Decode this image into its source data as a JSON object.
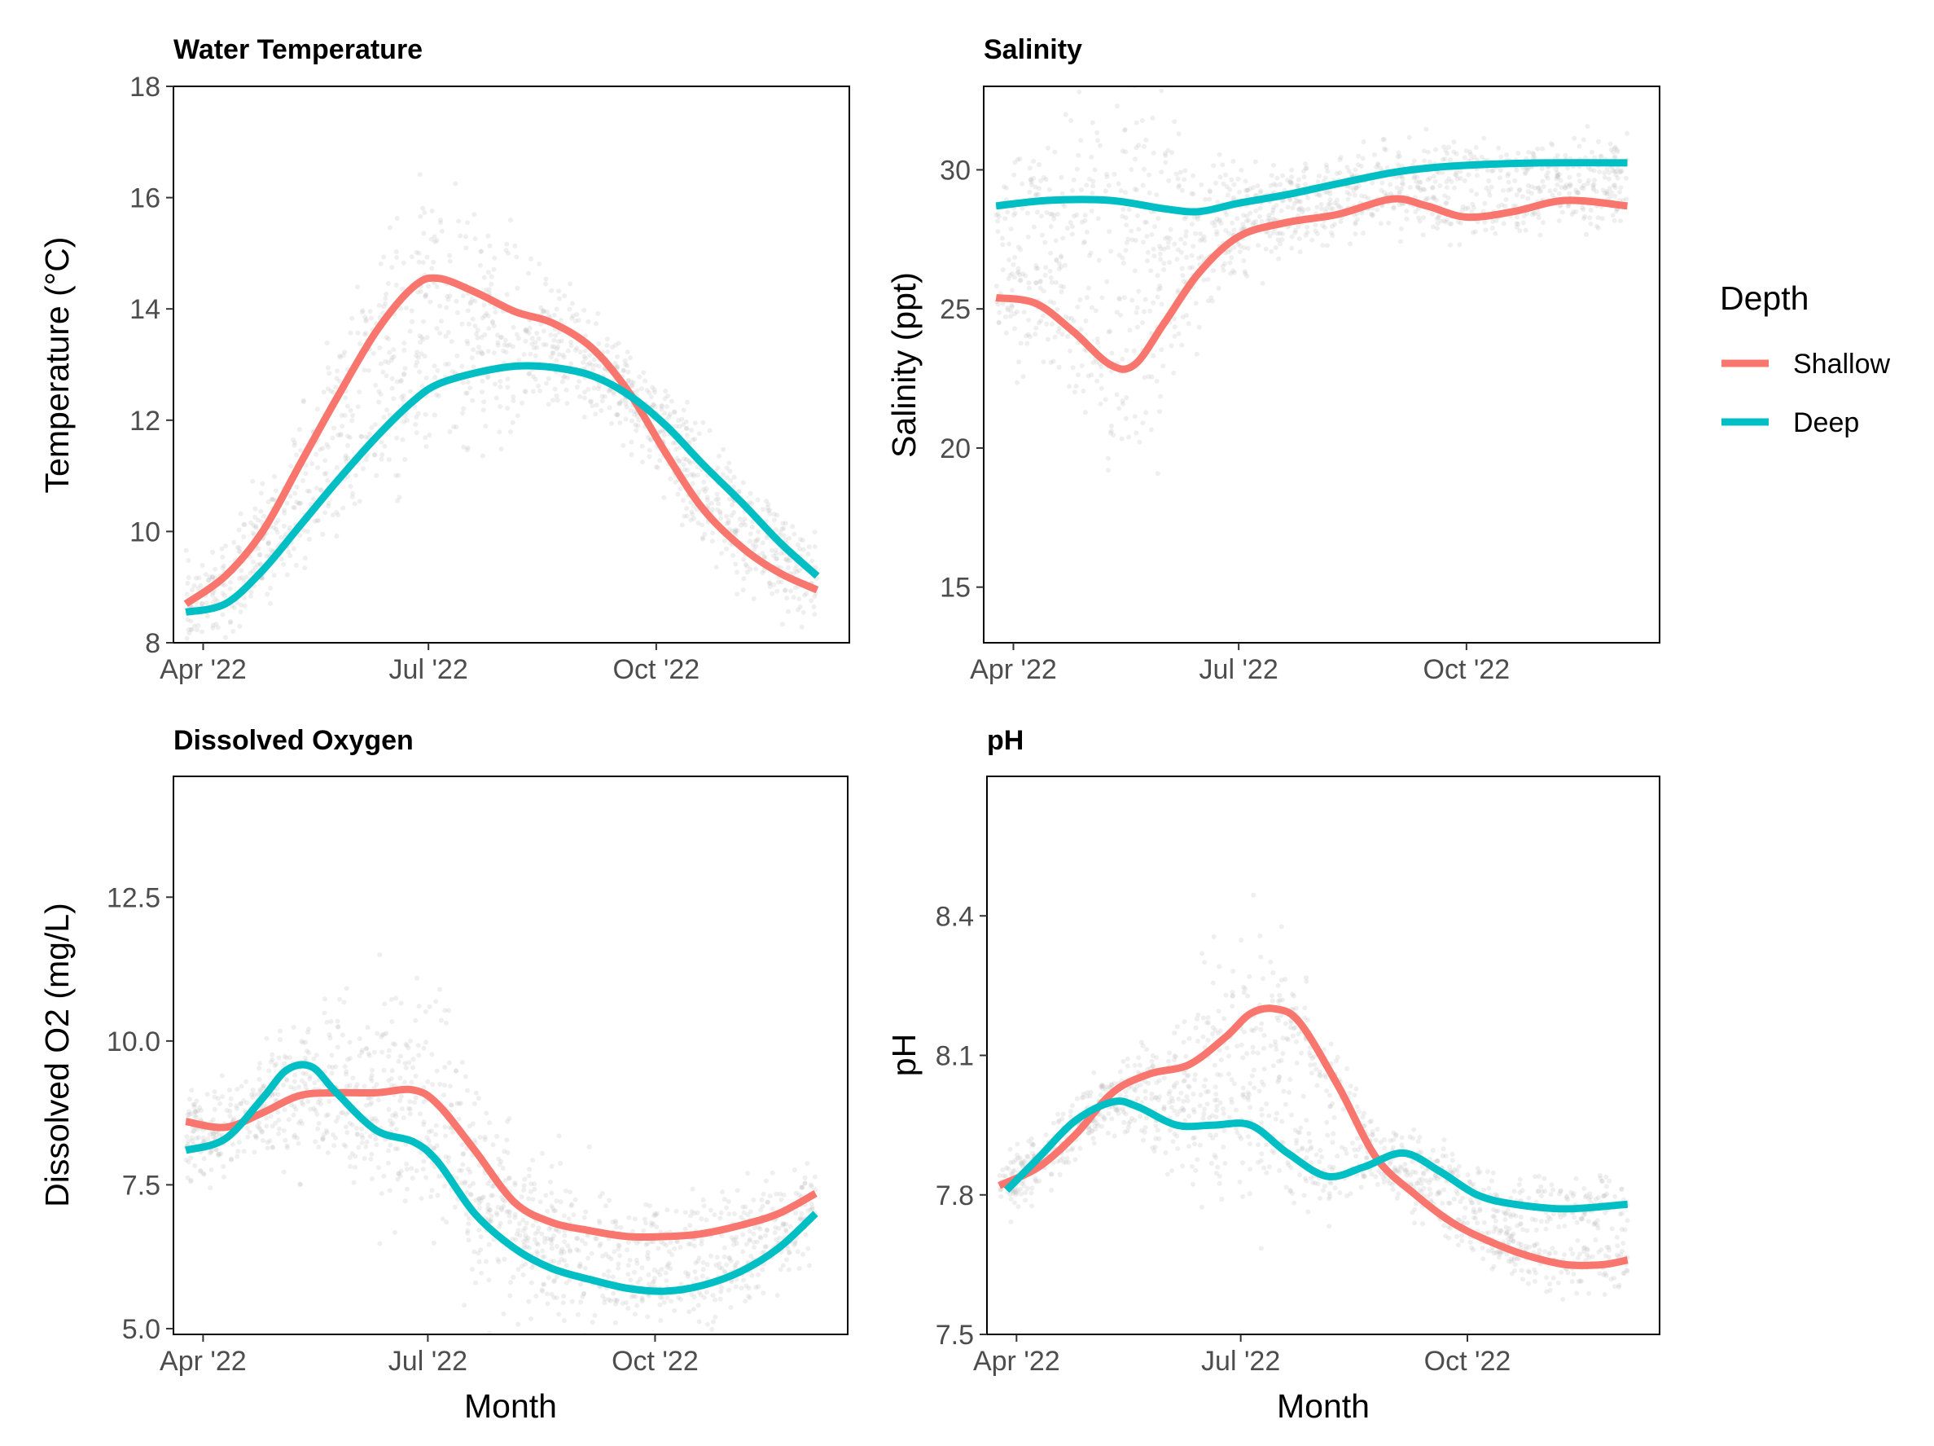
{
  "legend": {
    "title": "Depth",
    "placement": "right",
    "entries": [
      {
        "label": "Shallow",
        "color": "#F8766D"
      },
      {
        "label": "Deep",
        "color": "#00BFC4"
      }
    ]
  },
  "raw_point_color": "#BEBEBE",
  "chart_data": [
    {
      "id": "temp",
      "type": "line",
      "title": "Water Temperature",
      "xlabel": "",
      "ylabel": "Temperature (°C)",
      "xlim": [
        "2022-03-20",
        "2022-12-18"
      ],
      "ylim": [
        8,
        18
      ],
      "x_ticks": [
        {
          "date": "2022-04-01",
          "label": "Apr '22"
        },
        {
          "date": "2022-07-01",
          "label": "Jul '22"
        },
        {
          "date": "2022-10-01",
          "label": "Oct '22"
        }
      ],
      "y_ticks": [
        {
          "value": 8,
          "label": "8"
        },
        {
          "value": 10,
          "label": "10"
        },
        {
          "value": 12,
          "label": "12"
        },
        {
          "value": 14,
          "label": "14"
        },
        {
          "value": 16,
          "label": "16"
        },
        {
          "value": 18,
          "label": "18"
        }
      ],
      "grid": false,
      "series": [
        {
          "name": "Shallow",
          "color": "#F8766D",
          "x": [
            "2022-03-25",
            "2022-04-10",
            "2022-04-25",
            "2022-05-10",
            "2022-05-25",
            "2022-06-10",
            "2022-06-25",
            "2022-07-05",
            "2022-07-20",
            "2022-08-05",
            "2022-08-20",
            "2022-09-05",
            "2022-09-20",
            "2022-10-05",
            "2022-10-20",
            "2022-11-05",
            "2022-11-20",
            "2022-12-05"
          ],
          "y": [
            8.7,
            9.2,
            10.0,
            11.2,
            12.4,
            13.6,
            14.4,
            14.55,
            14.3,
            13.95,
            13.75,
            13.3,
            12.5,
            11.4,
            10.4,
            9.7,
            9.25,
            8.95
          ]
        },
        {
          "name": "Deep",
          "color": "#00BFC4",
          "x": [
            "2022-03-25",
            "2022-04-10",
            "2022-04-25",
            "2022-05-10",
            "2022-05-25",
            "2022-06-10",
            "2022-06-25",
            "2022-07-05",
            "2022-07-20",
            "2022-08-05",
            "2022-08-20",
            "2022-09-05",
            "2022-09-20",
            "2022-10-05",
            "2022-10-20",
            "2022-11-05",
            "2022-11-20",
            "2022-12-05"
          ],
          "y": [
            8.55,
            8.7,
            9.3,
            10.1,
            10.9,
            11.7,
            12.35,
            12.65,
            12.85,
            12.97,
            12.95,
            12.8,
            12.45,
            11.9,
            11.2,
            10.5,
            9.8,
            9.2
          ]
        }
      ]
    },
    {
      "id": "sal",
      "type": "line",
      "title": "Salinity",
      "xlabel": "",
      "ylabel": "Salinity (ppt)",
      "xlim": [
        "2022-03-20",
        "2022-12-18"
      ],
      "ylim": [
        13,
        33
      ],
      "x_ticks": [
        {
          "date": "2022-04-01",
          "label": "Apr '22"
        },
        {
          "date": "2022-07-01",
          "label": "Jul '22"
        },
        {
          "date": "2022-10-01",
          "label": "Oct '22"
        }
      ],
      "y_ticks": [
        {
          "value": 15,
          "label": "15"
        },
        {
          "value": 20,
          "label": "20"
        },
        {
          "value": 25,
          "label": "25"
        },
        {
          "value": 30,
          "label": "30"
        }
      ],
      "grid": false,
      "series": [
        {
          "name": "Shallow",
          "color": "#F8766D",
          "x": [
            "2022-03-25",
            "2022-04-10",
            "2022-04-25",
            "2022-05-10",
            "2022-05-20",
            "2022-06-01",
            "2022-06-15",
            "2022-07-01",
            "2022-07-20",
            "2022-08-10",
            "2022-09-01",
            "2022-09-15",
            "2022-10-01",
            "2022-10-20",
            "2022-11-10",
            "2022-12-05"
          ],
          "y": [
            25.4,
            25.2,
            24.2,
            23.0,
            23.0,
            24.5,
            26.3,
            27.6,
            28.1,
            28.4,
            28.95,
            28.7,
            28.3,
            28.5,
            28.9,
            28.7
          ]
        },
        {
          "name": "Deep",
          "color": "#00BFC4",
          "x": [
            "2022-03-25",
            "2022-04-15",
            "2022-05-10",
            "2022-06-01",
            "2022-06-15",
            "2022-07-01",
            "2022-07-20",
            "2022-08-10",
            "2022-09-01",
            "2022-09-20",
            "2022-10-10",
            "2022-11-01",
            "2022-12-05"
          ],
          "y": [
            28.7,
            28.9,
            28.9,
            28.6,
            28.5,
            28.8,
            29.1,
            29.5,
            29.9,
            30.1,
            30.2,
            30.25,
            30.25
          ]
        }
      ]
    },
    {
      "id": "do",
      "type": "line",
      "title": "Dissolved Oxygen",
      "xlabel": "Month",
      "ylabel": "Dissolved O2 (mg/L)",
      "xlim": [
        "2022-03-20",
        "2022-12-18"
      ],
      "ylim": [
        4.9,
        14.6
      ],
      "x_ticks": [
        {
          "date": "2022-04-01",
          "label": "Apr '22"
        },
        {
          "date": "2022-07-01",
          "label": "Jul '22"
        },
        {
          "date": "2022-10-01",
          "label": "Oct '22"
        }
      ],
      "y_ticks": [
        {
          "value": 5.0,
          "label": "5.0"
        },
        {
          "value": 7.5,
          "label": "7.5"
        },
        {
          "value": 10.0,
          "label": "10.0"
        },
        {
          "value": 12.5,
          "label": "12.5"
        }
      ],
      "grid": false,
      "series": [
        {
          "name": "Shallow",
          "color": "#F8766D",
          "x": [
            "2022-03-25",
            "2022-04-10",
            "2022-04-25",
            "2022-05-10",
            "2022-05-25",
            "2022-06-10",
            "2022-06-25",
            "2022-07-05",
            "2022-07-20",
            "2022-08-05",
            "2022-08-20",
            "2022-09-05",
            "2022-09-20",
            "2022-10-05",
            "2022-10-20",
            "2022-11-05",
            "2022-11-20",
            "2022-12-05"
          ],
          "y": [
            8.6,
            8.5,
            8.75,
            9.05,
            9.1,
            9.1,
            9.15,
            8.9,
            8.1,
            7.2,
            6.85,
            6.7,
            6.6,
            6.6,
            6.65,
            6.8,
            7.0,
            7.35
          ]
        },
        {
          "name": "Deep",
          "color": "#00BFC4",
          "x": [
            "2022-03-25",
            "2022-04-10",
            "2022-04-25",
            "2022-05-05",
            "2022-05-15",
            "2022-05-25",
            "2022-06-10",
            "2022-06-25",
            "2022-07-05",
            "2022-07-20",
            "2022-08-05",
            "2022-08-20",
            "2022-09-05",
            "2022-09-20",
            "2022-10-05",
            "2022-10-20",
            "2022-11-05",
            "2022-11-20",
            "2022-12-05"
          ],
          "y": [
            8.1,
            8.3,
            9.0,
            9.5,
            9.55,
            9.1,
            8.45,
            8.25,
            7.9,
            7.0,
            6.4,
            6.05,
            5.85,
            5.7,
            5.65,
            5.75,
            6.0,
            6.4,
            7.0
          ]
        }
      ]
    },
    {
      "id": "ph",
      "type": "line",
      "title": "pH",
      "xlabel": "Month",
      "ylabel": "pH",
      "xlim": [
        "2022-03-20",
        "2022-12-18"
      ],
      "ylim": [
        7.5,
        8.7
      ],
      "x_ticks": [
        {
          "date": "2022-04-01",
          "label": "Apr '22"
        },
        {
          "date": "2022-07-01",
          "label": "Jul '22"
        },
        {
          "date": "2022-10-01",
          "label": "Oct '22"
        }
      ],
      "y_ticks": [
        {
          "value": 7.5,
          "label": "7.5"
        },
        {
          "value": 7.8,
          "label": "7.8"
        },
        {
          "value": 8.1,
          "label": "8.1"
        },
        {
          "value": 8.4,
          "label": "8.4"
        }
      ],
      "grid": false,
      "series": [
        {
          "name": "Shallow",
          "color": "#F8766D",
          "x": [
            "2022-03-25",
            "2022-04-10",
            "2022-04-25",
            "2022-05-10",
            "2022-05-25",
            "2022-06-10",
            "2022-06-25",
            "2022-07-05",
            "2022-07-15",
            "2022-07-25",
            "2022-08-10",
            "2022-08-25",
            "2022-09-10",
            "2022-09-25",
            "2022-10-10",
            "2022-10-25",
            "2022-11-10",
            "2022-11-25",
            "2022-12-05"
          ],
          "y": [
            7.82,
            7.86,
            7.93,
            8.02,
            8.06,
            8.08,
            8.14,
            8.19,
            8.2,
            8.17,
            8.03,
            7.88,
            7.8,
            7.74,
            7.7,
            7.67,
            7.65,
            7.65,
            7.66
          ]
        },
        {
          "name": "Deep",
          "color": "#00BFC4",
          "x": [
            "2022-03-28",
            "2022-04-10",
            "2022-04-25",
            "2022-05-10",
            "2022-05-20",
            "2022-06-05",
            "2022-06-20",
            "2022-07-05",
            "2022-07-20",
            "2022-08-05",
            "2022-08-20",
            "2022-09-05",
            "2022-09-20",
            "2022-10-05",
            "2022-10-20",
            "2022-11-10",
            "2022-12-05"
          ],
          "y": [
            7.81,
            7.88,
            7.96,
            8.0,
            7.99,
            7.95,
            7.95,
            7.95,
            7.89,
            7.84,
            7.86,
            7.89,
            7.85,
            7.8,
            7.78,
            7.77,
            7.78
          ]
        }
      ]
    }
  ]
}
